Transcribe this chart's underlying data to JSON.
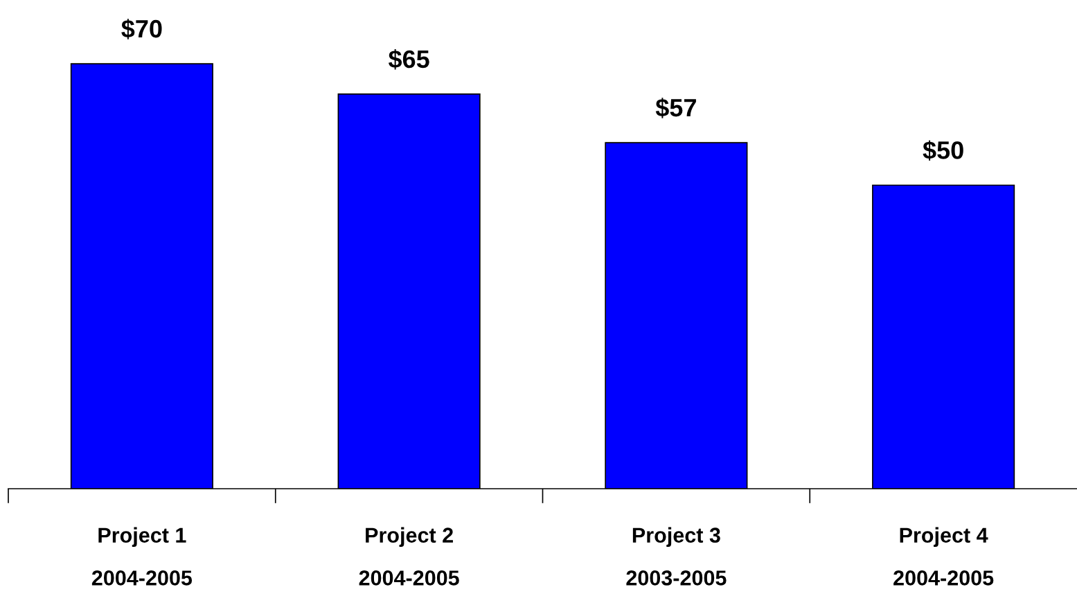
{
  "chart_data": {
    "type": "bar",
    "categories": [
      "Project 1\n2004-2005",
      "Project 2\n2004-2005",
      "Project 3\n2003-2005",
      "Project 4\n2004-2005"
    ],
    "values": [
      70,
      65,
      57,
      50
    ],
    "value_labels": [
      "$70",
      "$65",
      "$57",
      "$50"
    ],
    "color": "#0000ff",
    "grid": false,
    "tick_labels": "x"
  }
}
